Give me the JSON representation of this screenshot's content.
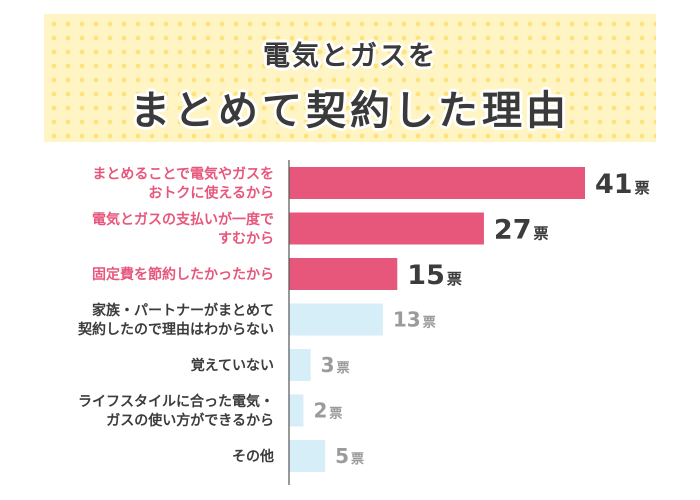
{
  "header": {
    "title_line1": "電気とガスを",
    "title_line2": "まとめて契約した理由"
  },
  "colors": {
    "highlight_bar": "#e7577c",
    "highlight_label": "#e7577c",
    "highlight_value": "#3c3c3c",
    "normal_bar": "#d6eef8",
    "normal_label": "#3c3c3c",
    "normal_value": "#9b9b9b",
    "axis": "#555555"
  },
  "chart_data": {
    "type": "bar",
    "orientation": "horizontal",
    "title": "電気とガスをまとめて契約した理由",
    "unit": "票",
    "categories": [
      [
        "まとめることで電気やガスを",
        "おトクに使えるから"
      ],
      [
        "電気とガスの支払いが一度で",
        "すむから"
      ],
      [
        "固定費を節約したかったから"
      ],
      [
        "家族・パートナーがまとめて",
        "契約したので理由はわからない"
      ],
      [
        "覚えていない"
      ],
      [
        "ライフスタイルに合った電気・",
        "ガスの使い方ができるから"
      ],
      [
        "その他"
      ]
    ],
    "values": [
      41,
      27,
      15,
      13,
      3,
      2,
      5
    ],
    "highlighted": [
      true,
      true,
      true,
      false,
      false,
      false,
      false
    ],
    "xlim": [
      0,
      41
    ]
  }
}
